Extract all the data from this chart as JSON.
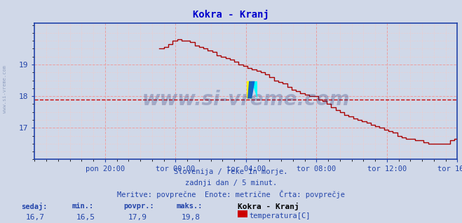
{
  "title": "Kokra - Kranj",
  "title_color": "#0000cc",
  "bg_color": "#d0d8e8",
  "plot_bg_color": "#d0d8e8",
  "line_color": "#aa0000",
  "avg_line_color": "#cc0000",
  "avg_line_value": 17.9,
  "grid_color_major": "#ee9999",
  "grid_color_minor": "#eecccc",
  "axis_color": "#2244aa",
  "tick_color": "#2244aa",
  "yticks": [
    17,
    18,
    19
  ],
  "ylim": [
    16.2,
    20.3
  ],
  "xtick_labels": [
    "pon 20:00",
    "tor 00:00",
    "tor 04:00",
    "tor 08:00",
    "tor 12:00",
    "tor 16:00"
  ],
  "watermark": "www.si-vreme.com",
  "watermark_color": "#223377",
  "watermark_alpha": 0.28,
  "sub1": "Slovenija / reke in morje.",
  "sub2": "zadnji dan / 5 minut.",
  "sub3": "Meritve: povprečne  Enote: metrične  Črta: povprečje",
  "sub_color": "#2244aa",
  "stat_labels": [
    "sedaj:",
    "min.:",
    "povpr.:",
    "maks.:"
  ],
  "stat_values": [
    "16,7",
    "16,5",
    "17,9",
    "19,8"
  ],
  "legend_label": "Kokra - Kranj",
  "legend_series": "temperatura[C]",
  "legend_color": "#cc0000",
  "sidewatermark": "www.si-vreme.com",
  "sidewatermark_color": "#8899bb"
}
